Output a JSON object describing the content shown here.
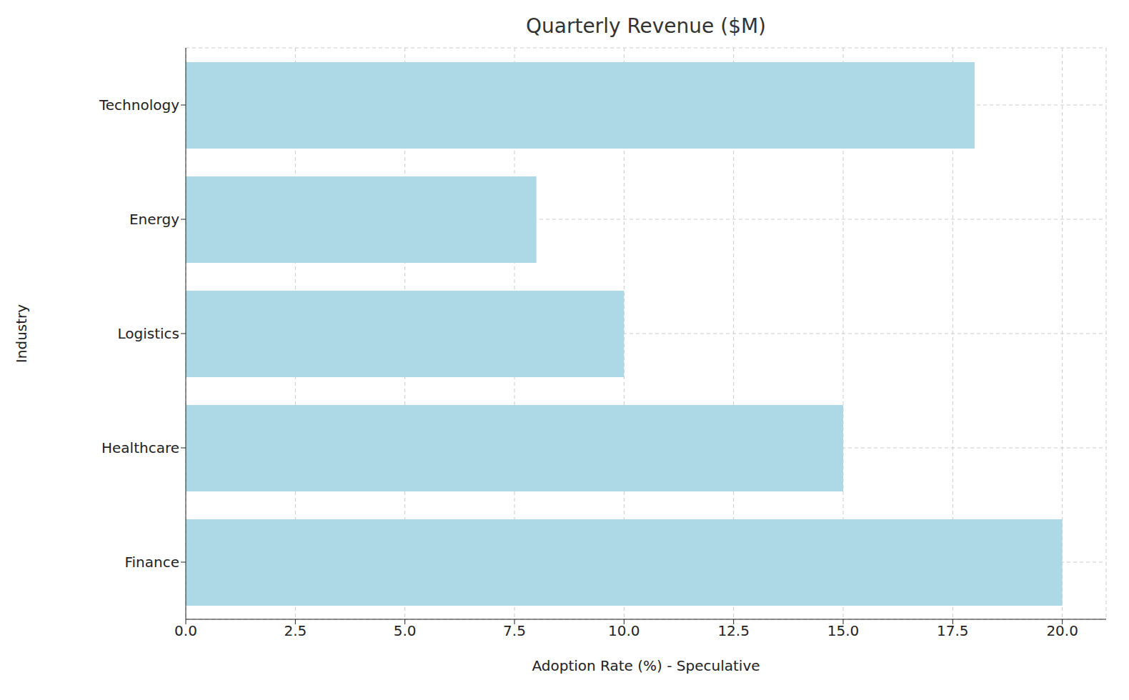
{
  "chart_data": {
    "type": "bar",
    "title": "Quarterly Revenue ($M)",
    "orientation": "horizontal",
    "categories": [
      "Technology",
      "Energy",
      "Logistics",
      "Healthcare",
      "Finance"
    ],
    "values": [
      18,
      8,
      10,
      15,
      20
    ],
    "color": "#add8e6",
    "x_label": "Adoption Rate (%) - Speculative",
    "y_label": "Industry",
    "xlim": [
      0,
      21
    ],
    "xticks": [
      {
        "value": 0,
        "label": "0.0"
      },
      2.5,
      {
        "value": 5,
        "label": "5.0"
      },
      7.5,
      {
        "value": 10,
        "label": "10.0"
      },
      12.5,
      {
        "value": 15,
        "label": "15.0"
      },
      17.5,
      {
        "value": 20,
        "label": "20.0"
      }
    ],
    "grid": true
  }
}
